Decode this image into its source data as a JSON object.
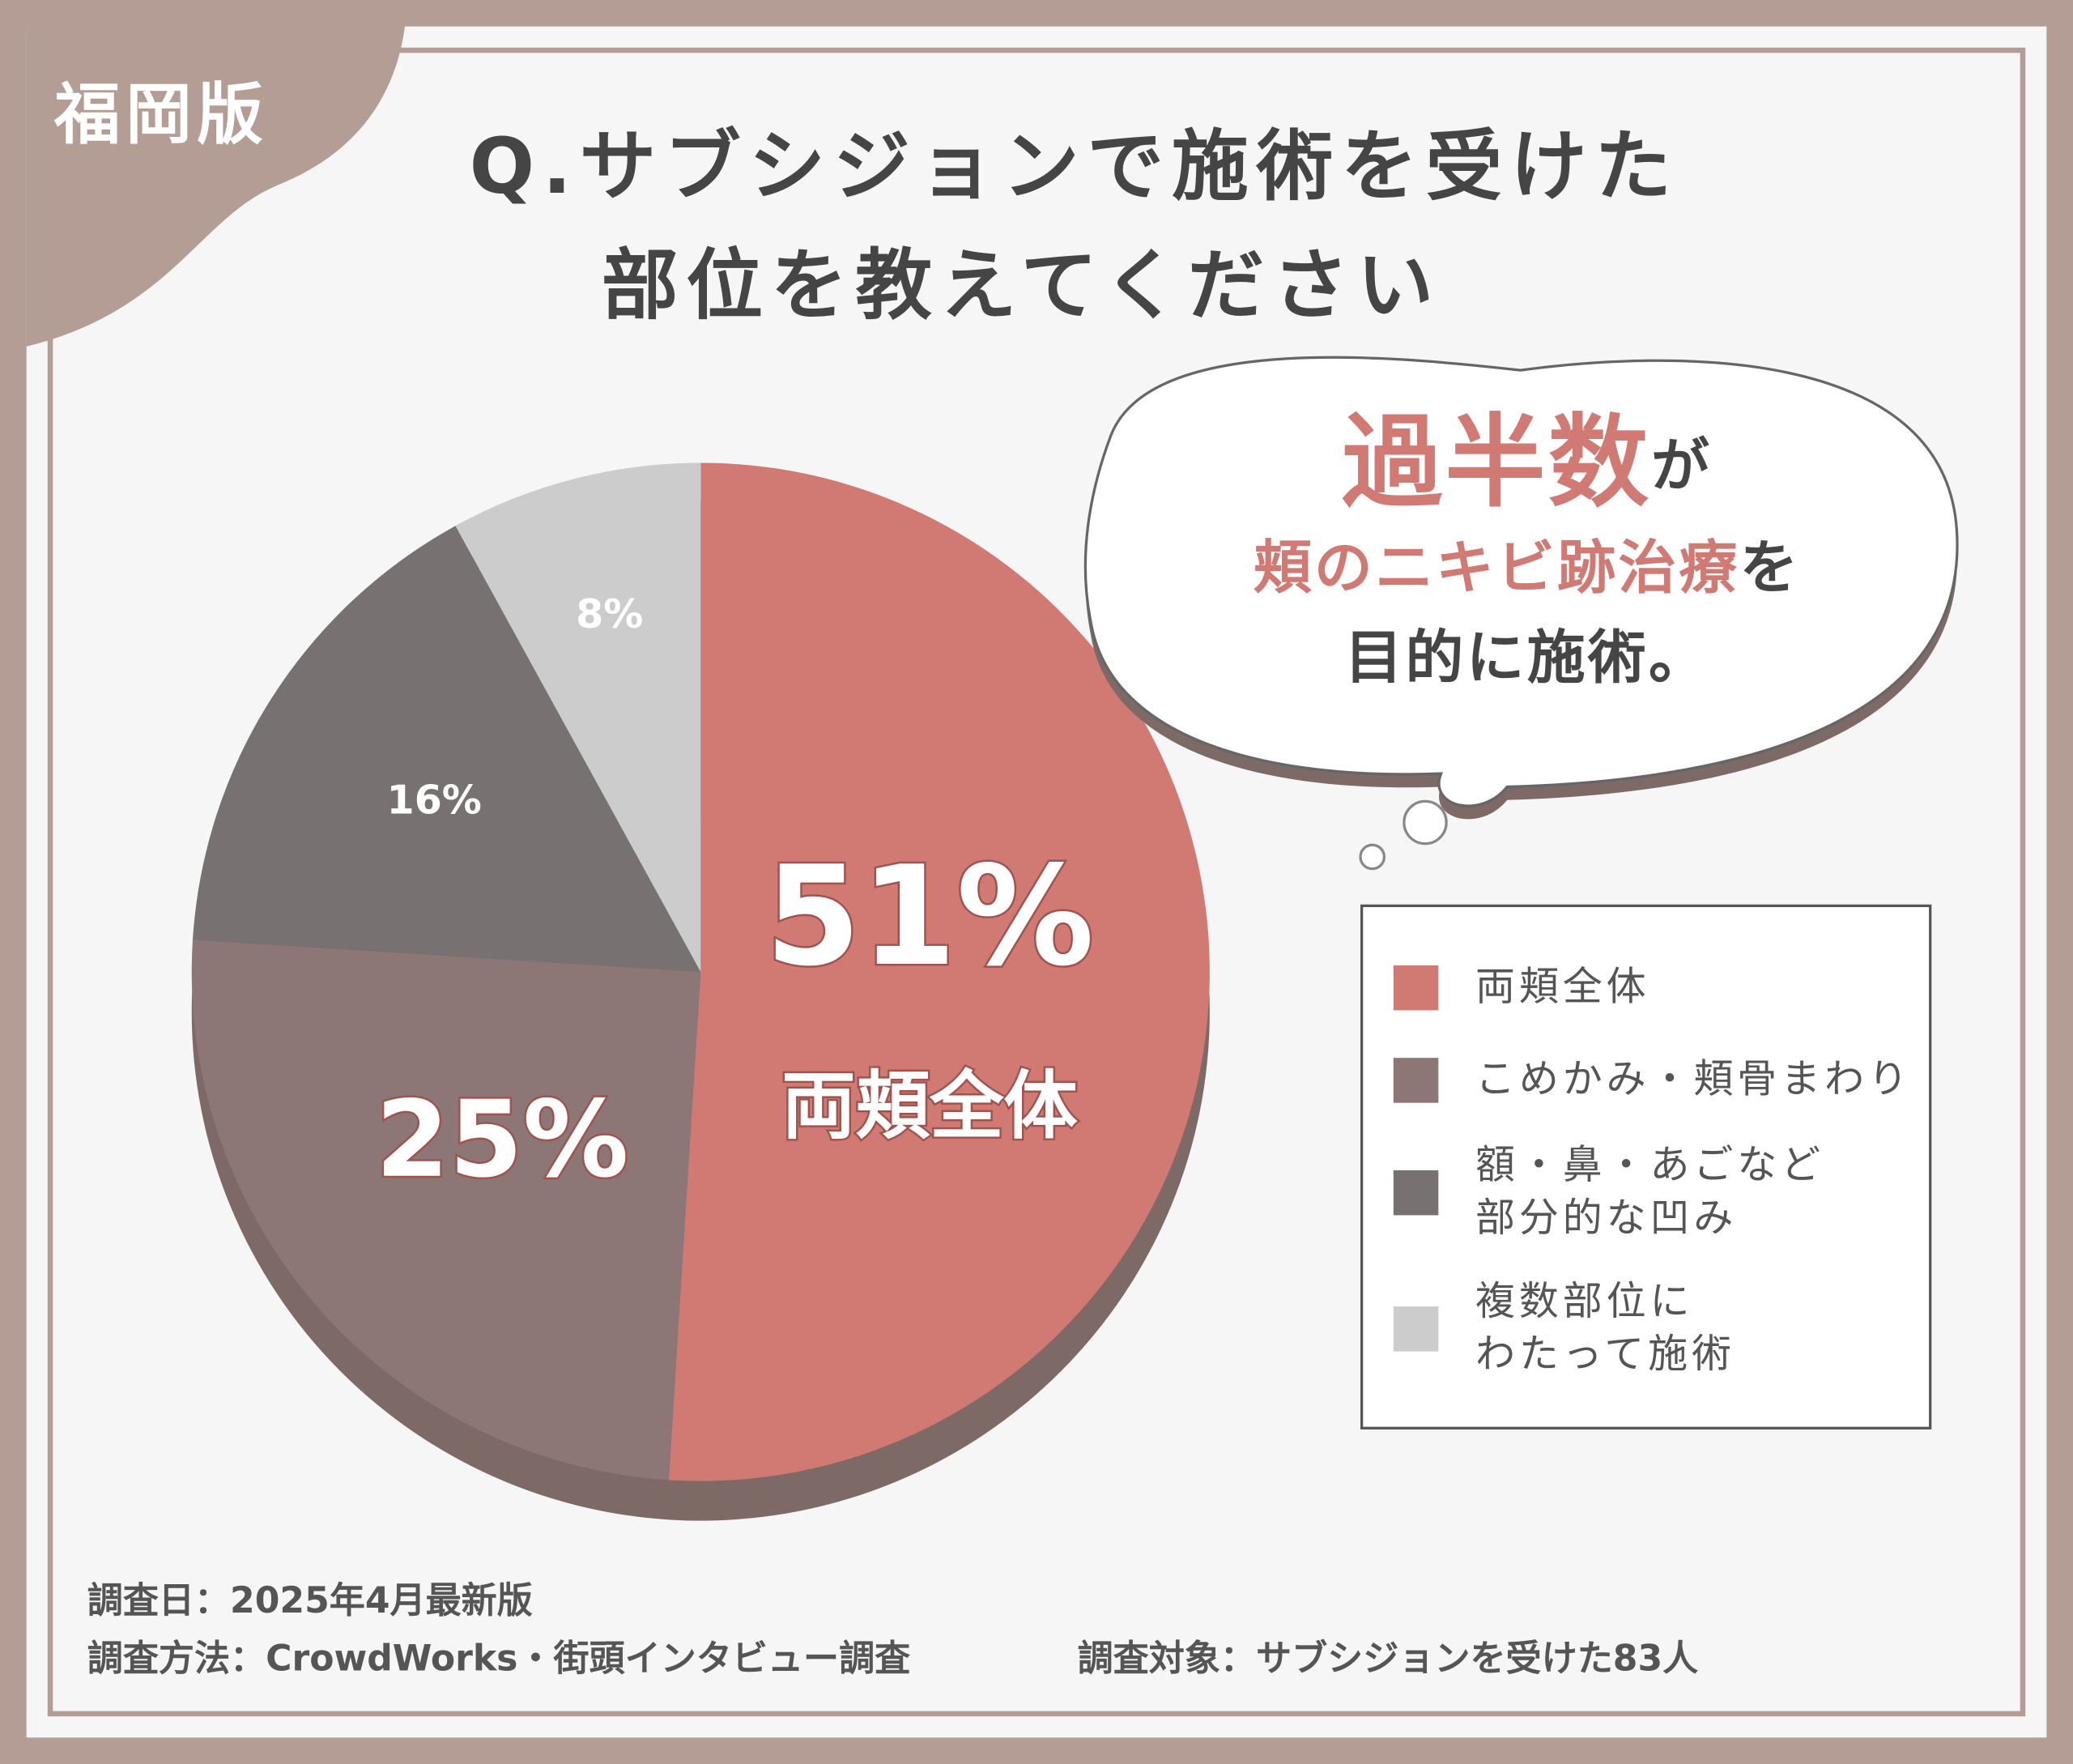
{
  "badge": "福岡版",
  "chart_data": {
    "type": "pie",
    "title": [
      "Q.サブシジョンで施術を受けた",
      "部位を教えてください"
    ],
    "categories": [
      "両頬全体",
      "こめかみ・頬骨まわり",
      "額・鼻・あごなど\n部分的な凹み",
      "複数部位に\nわたって施術"
    ],
    "values": [
      51,
      25,
      16,
      8
    ],
    "value_labels": [
      "51%",
      "25%",
      "16%",
      "8%"
    ],
    "colors": [
      "#d07a73",
      "#8c7776",
      "#777271",
      "#cdcccc"
    ]
  },
  "callout": {
    "lines": [
      [
        {
          "text": "過半数",
          "accent": true
        },
        {
          "text": "が",
          "accent": false
        }
      ],
      [
        {
          "text": "頬のニキビ跡治療",
          "accent": true
        },
        {
          "text": "を",
          "accent": false
        }
      ],
      [
        {
          "text": "目的に施術。",
          "accent": false
        }
      ]
    ]
  },
  "footer": [
    "調査日：2025年4月最新版",
    "調査方法：CrowdWorks・街頭インタビュー調査",
    "調査対象：サブシジョンを受けた83人"
  ]
}
